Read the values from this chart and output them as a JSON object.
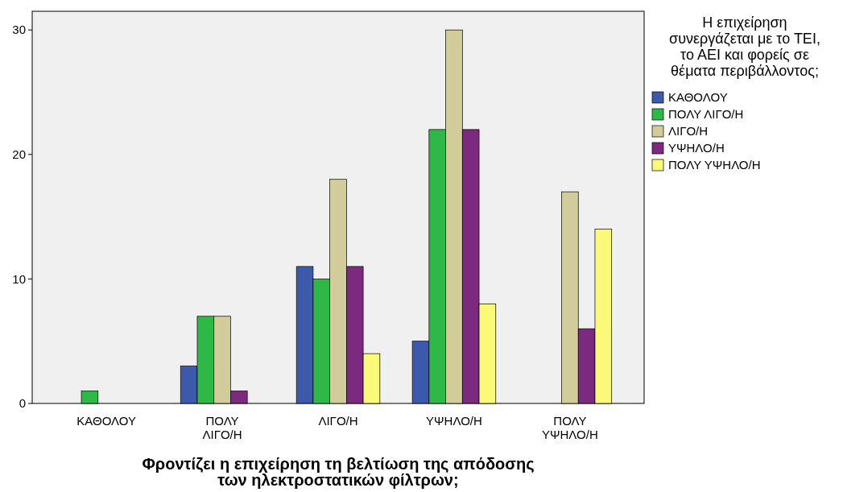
{
  "chart_data": {
    "type": "bar",
    "xlabel": "Φροντίζει η επιχείρηση τη βελτίωση της απόδοσης των ηλεκτροστατικών φίλτρων;",
    "legend_title": "Η επιχείρηση συνεργάζεται με το ΤΕΙ, το ΑΕΙ και φορείς σε θέματα περιβάλλοντος;",
    "categories": [
      "ΚΑΘΟΛΟΥ",
      "ΠΟΛΥ ΛΙΓΟ/Η",
      "ΛΙΓΟ/Η",
      "ΥΨΗΛΟ/Η",
      "ΠΟΛΥ ΥΨΗΛΟ/Η"
    ],
    "series": [
      {
        "name": "ΚΑΘΟΛΟΥ",
        "color": "#3d59ab",
        "values": [
          0,
          3,
          11,
          5,
          0
        ]
      },
      {
        "name": "ΠΟΛΥ ΛΙΓΟ/Η",
        "color": "#2eb848",
        "values": [
          1,
          7,
          10,
          22,
          0
        ]
      },
      {
        "name": "ΛΙΓΟ/Η",
        "color": "#d2cc9a",
        "values": [
          0,
          7,
          18,
          30,
          17
        ]
      },
      {
        "name": "ΥΨΗΛΟ/Η",
        "color": "#7c2a7f",
        "values": [
          0,
          1,
          11,
          22,
          6
        ]
      },
      {
        "name": "ΠΟΛΥ ΥΨΗΛΟ/Η",
        "color": "#fbf97a",
        "values": [
          0,
          0,
          4,
          8,
          14
        ]
      }
    ],
    "ylim": [
      0,
      31.5
    ],
    "yticks": [
      0,
      10,
      20,
      30
    ],
    "grid": false,
    "legend": "right"
  }
}
